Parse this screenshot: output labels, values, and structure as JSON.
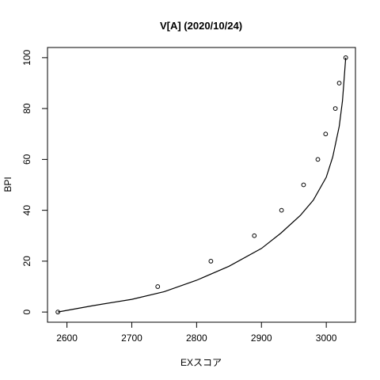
{
  "chart_data": {
    "type": "scatter",
    "title": "V[A] (2020/10/24)",
    "xlabel": "EXスコア",
    "ylabel": "BPI",
    "xlim": [
      2570,
      3045
    ],
    "ylim": [
      -4,
      104
    ],
    "x_ticks": [
      2600,
      2700,
      2800,
      2900,
      3000
    ],
    "y_ticks": [
      0,
      20,
      40,
      60,
      80,
      100
    ],
    "grid": false,
    "legend": "none",
    "points": [
      {
        "x": 2586,
        "y": 0
      },
      {
        "x": 2740,
        "y": 10
      },
      {
        "x": 2822,
        "y": 20
      },
      {
        "x": 2889,
        "y": 30
      },
      {
        "x": 2931,
        "y": 40
      },
      {
        "x": 2965,
        "y": 50
      },
      {
        "x": 2987,
        "y": 60
      },
      {
        "x": 2999,
        "y": 70
      },
      {
        "x": 3014,
        "y": 80
      },
      {
        "x": 3020,
        "y": 90
      },
      {
        "x": 3030,
        "y": 100
      }
    ],
    "curve": [
      {
        "x": 2586,
        "y": 0
      },
      {
        "x": 2640,
        "y": 2.5
      },
      {
        "x": 2700,
        "y": 5
      },
      {
        "x": 2750,
        "y": 8
      },
      {
        "x": 2800,
        "y": 12.5
      },
      {
        "x": 2850,
        "y": 18
      },
      {
        "x": 2900,
        "y": 25
      },
      {
        "x": 2930,
        "y": 31
      },
      {
        "x": 2960,
        "y": 38
      },
      {
        "x": 2980,
        "y": 44
      },
      {
        "x": 3000,
        "y": 53
      },
      {
        "x": 3010,
        "y": 61
      },
      {
        "x": 3020,
        "y": 73
      },
      {
        "x": 3025,
        "y": 83
      },
      {
        "x": 3030,
        "y": 100
      }
    ],
    "colors": {
      "ink": "#000000",
      "background": "#ffffff"
    }
  }
}
